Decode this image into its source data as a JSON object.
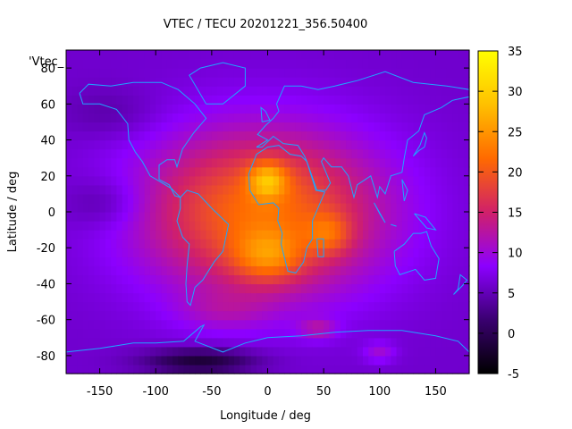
{
  "chart_data": {
    "type": "heatmap",
    "title": "VTEC / TECU 20201221_356.50400",
    "xlabel": "Longitude / deg",
    "ylabel": "Latitude / deg",
    "xlim": [
      -180,
      180
    ],
    "ylim": [
      -90,
      90
    ],
    "x_ticks": [
      -150,
      -100,
      -50,
      0,
      50,
      100,
      150
    ],
    "y_ticks": [
      -80,
      -60,
      -40,
      -20,
      0,
      20,
      40,
      60,
      80
    ],
    "legend_label": "'Vtec_",
    "colorbar": {
      "range": [
        -5,
        35
      ],
      "ticks": [
        -5,
        0,
        5,
        10,
        15,
        20,
        25,
        30,
        35
      ],
      "palette": [
        "#000000",
        "#3a0070",
        "#8c00ff",
        "#d0206a",
        "#ff6a00",
        "#ffc000",
        "#ffff00"
      ]
    },
    "background_level": 6,
    "blobs": [
      {
        "lon": -5,
        "lat": 0,
        "slon": 75,
        "slat": 32,
        "amp": 16
      },
      {
        "lon": 0,
        "lat": 18,
        "slon": 12,
        "slat": 7,
        "amp": 10
      },
      {
        "lon": 0,
        "lat": -25,
        "slon": 22,
        "slat": 10,
        "amp": 8
      },
      {
        "lon": 55,
        "lat": -12,
        "slon": 14,
        "slat": 8,
        "amp": 6
      },
      {
        "lon": -40,
        "lat": -55,
        "slon": 30,
        "slat": 8,
        "amp": 3
      },
      {
        "lon": 45,
        "lat": -65,
        "slon": 12,
        "slat": 4,
        "amp": 5
      },
      {
        "lon": 100,
        "lat": -78,
        "slon": 10,
        "slat": 4,
        "amp": 4
      },
      {
        "lon": -60,
        "lat": -83,
        "slon": 35,
        "slat": 5,
        "amp": -8
      },
      {
        "lon": -145,
        "lat": 5,
        "slon": 25,
        "slat": 10,
        "amp": -3
      },
      {
        "lon": -140,
        "lat": 55,
        "slon": 30,
        "slat": 10,
        "amp": -2
      }
    ],
    "map_color": "#1ea6ff"
  }
}
